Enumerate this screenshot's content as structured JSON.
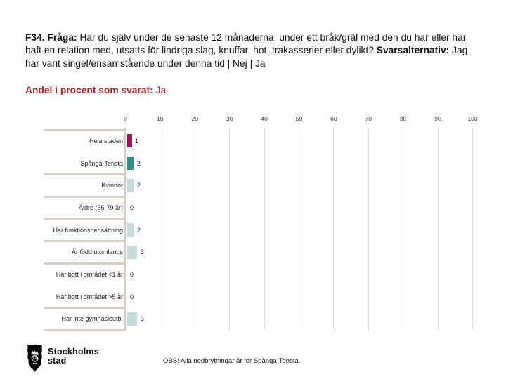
{
  "slide": {
    "question_prefix": "F34. Fråga: ",
    "question_text": "Har du själv under de senaste 12 månaderna, under ett bråk/gräl med den du har eller har haft en relation med, utsatts för lindriga slag, knuffar, hot, trakasserier eller dylikt? ",
    "answers_prefix": "Svarsalternativ: ",
    "answers_text": "Jag har varit singel/ensamstående under denna tid | Nej | Ja",
    "subtitle_prefix": "Andel i procent som svarat: ",
    "subtitle_value": "Ja"
  },
  "chart_data": {
    "type": "bar",
    "orientation": "horizontal",
    "title": "",
    "categories": [
      "Hela staden",
      "Spånga-Tensta",
      "Kvinnor",
      "Äldre (65-79 år)",
      "Har funktionsnedsättning",
      "Är född utomlands",
      "Har bott i området <1 år",
      "Har bott i området >5 år",
      "Har inte gymnasieutb."
    ],
    "values": [
      1,
      2,
      2,
      0,
      2,
      3,
      0,
      0,
      3
    ],
    "bar_colors": [
      "#A4105F",
      "#2F8C88",
      "#C3DCD8",
      "#C3DCD8",
      "#C3DCD8",
      "#C3DCD8",
      "#C3DCD8",
      "#C3DCD8",
      "#C3DCD8"
    ],
    "x_ticks": [
      0,
      10,
      20,
      30,
      40,
      50,
      60,
      70,
      80,
      90,
      100
    ],
    "xlim": [
      0,
      100
    ],
    "grid": true,
    "legend": false,
    "separator_before_rows": [
      0,
      2,
      3,
      4,
      5,
      6,
      8
    ],
    "bottom_separator": true
  },
  "footer": {
    "logo_text_line1": "Stockholms",
    "logo_text_line2": "stad",
    "note": "OBS! Alla nedbrytningar är för Spånga-Tensta."
  },
  "colors": {
    "subtitle_red": "#B22222",
    "bar_magenta": "#A4105F",
    "bar_teal": "#2F8C88",
    "bar_pale_teal": "#C3DCD8",
    "axis_line": "#D4CEC6",
    "gridline": "#DDDDDD",
    "text": "#1A1A1A"
  }
}
